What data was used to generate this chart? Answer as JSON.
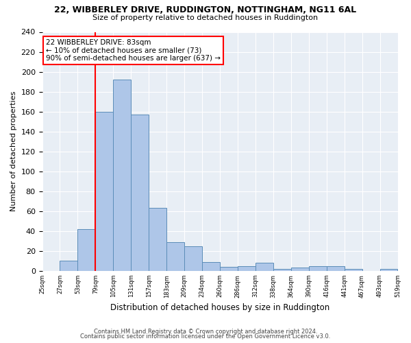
{
  "title1": "22, WIBBERLEY DRIVE, RUDDINGTON, NOTTINGHAM, NG11 6AL",
  "title2": "Size of property relative to detached houses in Ruddington",
  "xlabel": "Distribution of detached houses by size in Ruddington",
  "ylabel": "Number of detached properties",
  "bin_labels": [
    "25sqm",
    "27sqm",
    "53sqm",
    "79sqm",
    "105sqm",
    "131sqm",
    "157sqm",
    "183sqm",
    "209sqm",
    "234sqm",
    "260sqm",
    "286sqm",
    "312sqm",
    "338sqm",
    "364sqm",
    "390sqm",
    "416sqm",
    "441sqm",
    "467sqm",
    "493sqm",
    "519sqm"
  ],
  "bar_heights": [
    0,
    10,
    42,
    160,
    192,
    157,
    63,
    29,
    25,
    9,
    4,
    5,
    8,
    2,
    3,
    5,
    5,
    2,
    0,
    2
  ],
  "bar_color": "#aec6e8",
  "bar_edge_color": "#5b8db8",
  "property_line_x": 3,
  "ylim": [
    0,
    240
  ],
  "yticks": [
    0,
    20,
    40,
    60,
    80,
    100,
    120,
    140,
    160,
    180,
    200,
    220,
    240
  ],
  "annotation_text": "22 WIBBERLEY DRIVE: 83sqm\n← 10% of detached houses are smaller (73)\n90% of semi-detached houses are larger (637) →",
  "annotation_box_color": "white",
  "annotation_box_edge": "red",
  "vline_color": "red",
  "footer1": "Contains HM Land Registry data © Crown copyright and database right 2024.",
  "footer2": "Contains public sector information licensed under the Open Government Licence v3.0.",
  "n_bins": 20
}
